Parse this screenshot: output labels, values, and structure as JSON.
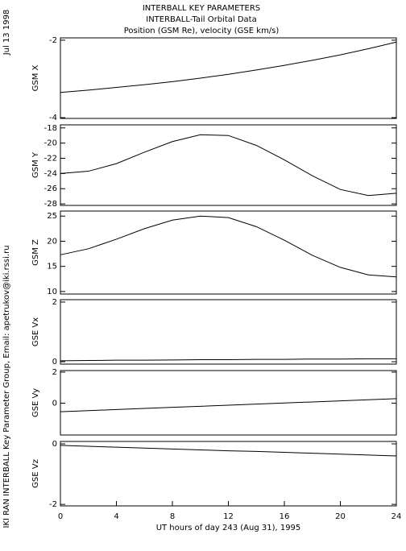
{
  "header": {
    "title": [
      "INTERBALL KEY PARAMETERS",
      "INTERBALL-Tail Orbital Data",
      "Position (GSM Re), velocity (GSE km/s)"
    ],
    "date": "Jul 13 1998",
    "credit": "IKI RAN INTERBALL Key Parameter Group, Email: apetrukov@iki.rssi.ru"
  },
  "chart_data": [
    {
      "type": "line",
      "ylabel": "GSM X",
      "x": [
        0,
        2,
        4,
        6,
        8,
        10,
        12,
        14,
        16,
        18,
        20,
        22,
        24
      ],
      "values": [
        -3.35,
        -3.29,
        -3.22,
        -3.15,
        -3.07,
        -2.98,
        -2.88,
        -2.77,
        -2.65,
        -2.52,
        -2.38,
        -2.22,
        -2.05
      ],
      "xlim": [
        0,
        24
      ],
      "ylim": [
        -4.02,
        -1.94
      ],
      "yticks": [
        -4,
        -2
      ]
    },
    {
      "type": "line",
      "ylabel": "GSM Y",
      "x": [
        0,
        2,
        4,
        6,
        8,
        10,
        12,
        14,
        16,
        18,
        20,
        22,
        24
      ],
      "values": [
        -24.0,
        -23.7,
        -22.7,
        -21.2,
        -19.8,
        -18.9,
        -19.0,
        -20.3,
        -22.2,
        -24.3,
        -26.1,
        -26.9,
        -26.6
      ],
      "xlim": [
        0,
        24
      ],
      "ylim": [
        -28.2,
        -17.6
      ],
      "yticks": [
        -28,
        -26,
        -24,
        -22,
        -20,
        -18
      ]
    },
    {
      "type": "line",
      "ylabel": "GSM Z",
      "x": [
        0,
        2,
        4,
        6,
        8,
        10,
        12,
        14,
        16,
        18,
        20,
        22,
        24
      ],
      "values": [
        17.3,
        18.5,
        20.4,
        22.5,
        24.2,
        25.0,
        24.7,
        22.9,
        20.2,
        17.2,
        14.8,
        13.3,
        12.9
      ],
      "xlim": [
        0,
        24
      ],
      "ylim": [
        9.5,
        26
      ],
      "yticks": [
        10,
        15,
        20,
        25
      ]
    },
    {
      "type": "line",
      "ylabel": "GSE Vx",
      "x": [
        0,
        2,
        4,
        6,
        8,
        10,
        12,
        14,
        16,
        18,
        20,
        22,
        24
      ],
      "values": [
        0.03,
        0.04,
        0.05,
        0.05,
        0.06,
        0.07,
        0.07,
        0.08,
        0.08,
        0.09,
        0.09,
        0.1,
        0.1
      ],
      "xlim": [
        0,
        24
      ],
      "ylim": [
        -0.08,
        2.08
      ],
      "yticks": [
        0,
        2
      ]
    },
    {
      "type": "line",
      "ylabel": "GSE Vy",
      "x": [
        0,
        2,
        4,
        6,
        8,
        10,
        12,
        14,
        16,
        18,
        20,
        22,
        24
      ],
      "values": [
        -0.55,
        -0.48,
        -0.41,
        -0.34,
        -0.27,
        -0.2,
        -0.13,
        -0.06,
        0.01,
        0.08,
        0.15,
        0.22,
        0.29
      ],
      "xlim": [
        0,
        24
      ],
      "ylim": [
        -2.05,
        2.1
      ],
      "yticks": [
        0,
        2
      ]
    },
    {
      "type": "line",
      "ylabel": "GSE Vz",
      "x": [
        0,
        2,
        4,
        6,
        8,
        10,
        12,
        14,
        16,
        18,
        20,
        22,
        24
      ],
      "values": [
        -0.05,
        -0.08,
        -0.11,
        -0.14,
        -0.17,
        -0.2,
        -0.23,
        -0.25,
        -0.28,
        -0.31,
        -0.34,
        -0.37,
        -0.4
      ],
      "xlim": [
        0,
        24
      ],
      "ylim": [
        -2.05,
        0.08
      ],
      "yticks": [
        -2,
        0
      ],
      "xticks": [
        0,
        4,
        8,
        12,
        16,
        20,
        24
      ],
      "xlabel": "UT hours of day 243 (Aug 31), 1995"
    }
  ]
}
